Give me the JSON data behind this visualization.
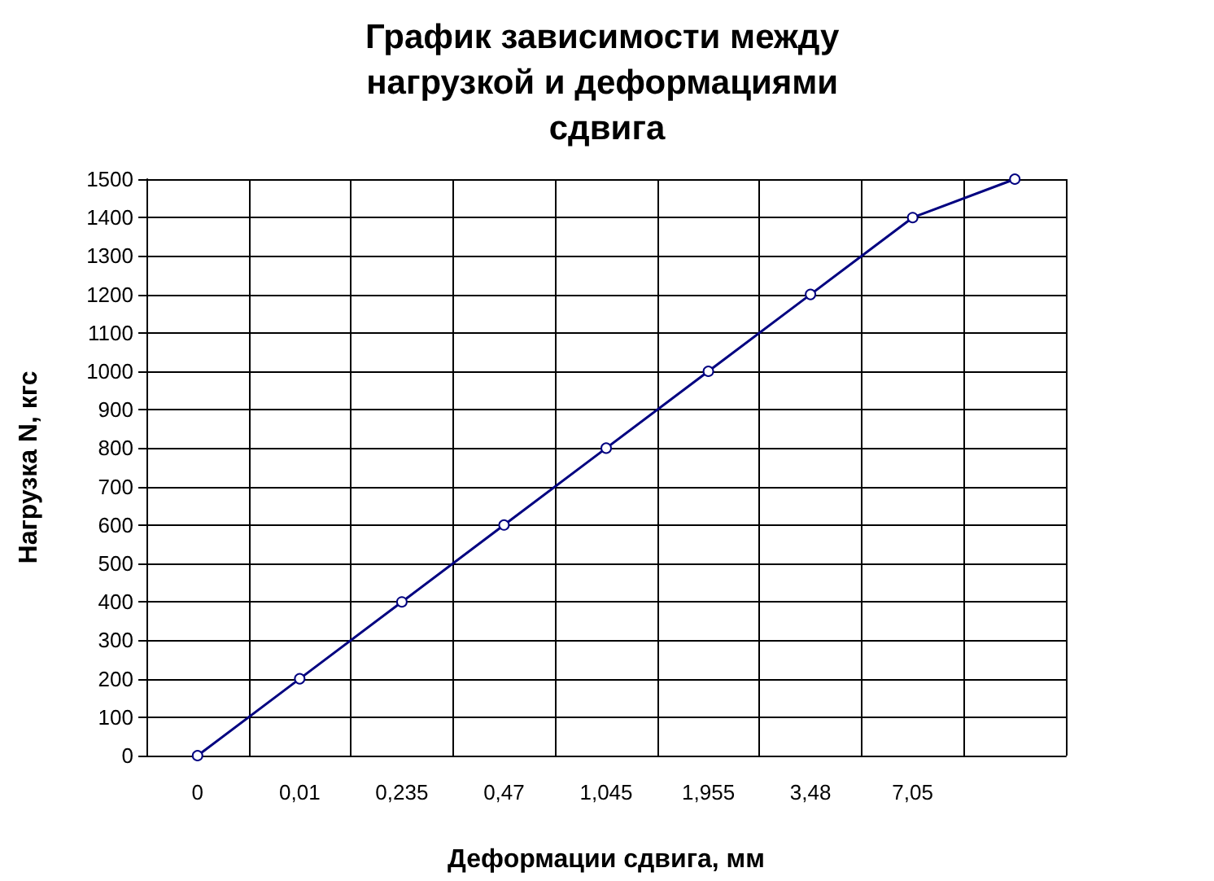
{
  "chart_data": {
    "type": "line",
    "title": "График зависимости между нагрузкой и деформациями сдвига",
    "xlabel": "Деформации сдвига, мм",
    "ylabel": "Нагрузка N, кгс",
    "categories": [
      "0",
      "0,01",
      "0,235",
      "0,47",
      "1,045",
      "1,955",
      "3,48",
      "7,05",
      null
    ],
    "series": [
      {
        "color": "#000080",
        "values": [
          0,
          200,
          400,
          600,
          800,
          1000,
          1200,
          1400,
          1500
        ]
      }
    ],
    "ylim": [
      0,
      1500
    ],
    "yticks": [
      0,
      100,
      200,
      300,
      400,
      500,
      600,
      700,
      800,
      900,
      1000,
      1100,
      1200,
      1300,
      1400,
      1500
    ],
    "grid": true,
    "marker": "circle",
    "line_style": "solid"
  }
}
